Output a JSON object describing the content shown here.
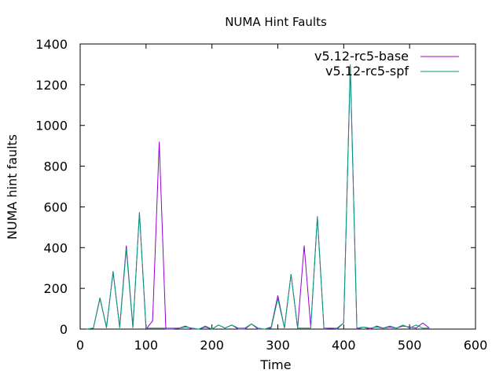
{
  "chart_data": {
    "type": "line",
    "title": "NUMA Hint Faults",
    "xlabel": "Time",
    "ylabel": "NUMA hint faults",
    "xlim": [
      0,
      600
    ],
    "ylim": [
      0,
      1400
    ],
    "xticks": [
      0,
      100,
      200,
      300,
      400,
      500,
      600
    ],
    "yticks": [
      0,
      200,
      400,
      600,
      800,
      1000,
      1200,
      1400
    ],
    "grid": false,
    "legend_position": "top-right",
    "series": [
      {
        "name": "v5.12-rc5-base",
        "color": "#9400d3",
        "x": [
          10,
          20,
          30,
          40,
          50,
          60,
          70,
          80,
          90,
          100,
          110,
          120,
          130,
          140,
          150,
          160,
          170,
          180,
          190,
          200,
          210,
          220,
          230,
          240,
          250,
          260,
          270,
          280,
          290,
          300,
          310,
          320,
          330,
          340,
          350,
          360,
          370,
          380,
          390,
          400,
          410,
          420,
          430,
          440,
          450,
          460,
          470,
          480,
          490,
          500,
          510,
          520,
          530
        ],
        "y": [
          0,
          5,
          150,
          10,
          280,
          10,
          410,
          10,
          570,
          0,
          40,
          920,
          0,
          0,
          5,
          15,
          0,
          0,
          10,
          0,
          20,
          5,
          20,
          0,
          0,
          25,
          0,
          0,
          10,
          165,
          5,
          270,
          5,
          410,
          10,
          550,
          0,
          5,
          0,
          30,
          1290,
          0,
          10,
          0,
          15,
          5,
          10,
          5,
          15,
          10,
          5,
          30,
          5
        ]
      },
      {
        "name": "v5.12-rc5-spf",
        "color": "#009e73",
        "x": [
          10,
          20,
          30,
          40,
          50,
          60,
          70,
          80,
          90,
          100,
          110,
          120,
          130,
          140,
          150,
          160,
          170,
          180,
          190,
          200,
          210,
          220,
          230,
          240,
          250,
          260,
          270,
          280,
          290,
          300,
          310,
          320,
          330,
          340,
          350,
          360,
          370,
          380,
          390,
          400,
          410,
          420,
          430,
          440,
          450,
          460,
          470,
          480,
          490,
          500,
          510,
          520,
          530
        ],
        "y": [
          0,
          5,
          155,
          5,
          285,
          5,
          395,
          5,
          575,
          5,
          5,
          5,
          5,
          5,
          5,
          10,
          5,
          0,
          15,
          0,
          20,
          5,
          20,
          5,
          5,
          25,
          5,
          0,
          5,
          150,
          5,
          270,
          5,
          5,
          5,
          555,
          5,
          5,
          5,
          30,
          1300,
          5,
          10,
          5,
          10,
          5,
          15,
          5,
          20,
          5,
          20,
          5,
          5
        ]
      }
    ]
  }
}
